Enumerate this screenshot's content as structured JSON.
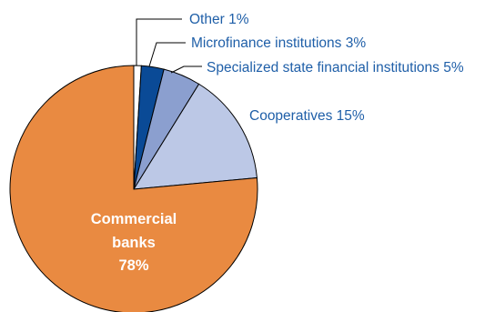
{
  "chart_data": {
    "type": "pie",
    "title": "",
    "slices": [
      {
        "label": "Other 1%",
        "value": 1,
        "color": "#ffffff"
      },
      {
        "label": "Microfinance institutions 3%",
        "value": 3,
        "color": "#0a4a96"
      },
      {
        "label": "Specialized state financial institutions 5%",
        "value": 5,
        "color": "#8b9fcf"
      },
      {
        "label": "Cooperatives 15%",
        "value": 15,
        "color": "#bcc8e6"
      },
      {
        "label_lines": [
          "Commercial",
          "banks",
          "78%"
        ],
        "value": 78,
        "color": "#e98a41"
      }
    ],
    "legend": "none (labels placed next to slices)"
  }
}
